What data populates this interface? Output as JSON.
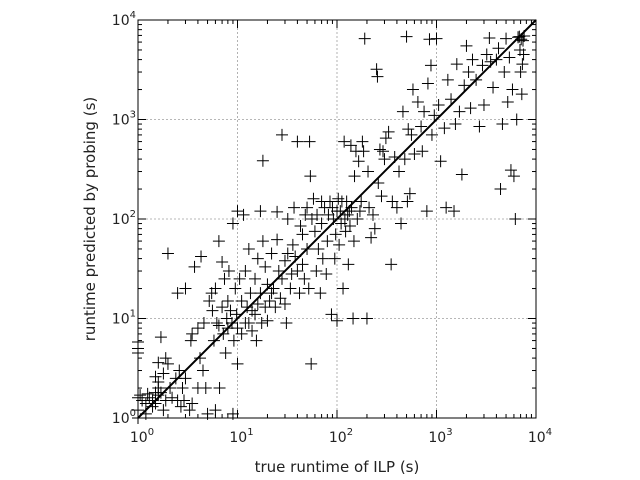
{
  "chart_data": {
    "type": "scatter",
    "scale": "log-log",
    "marker": "plus",
    "xlabel": "true runtime of ILP (s)",
    "ylabel": "runtime predicted by probing (s)",
    "xlim": [
      1,
      10000
    ],
    "ylim": [
      1,
      10000
    ],
    "x_ticks": [
      {
        "base": "10",
        "exp": "0"
      },
      {
        "base": "10",
        "exp": "1"
      },
      {
        "base": "10",
        "exp": "2"
      },
      {
        "base": "10",
        "exp": "3"
      },
      {
        "base": "10",
        "exp": "4"
      }
    ],
    "y_ticks": [
      {
        "base": "10",
        "exp": "0"
      },
      {
        "base": "10",
        "exp": "1"
      },
      {
        "base": "10",
        "exp": "2"
      },
      {
        "base": "10",
        "exp": "3"
      },
      {
        "base": "10",
        "exp": "4"
      }
    ],
    "grid": true,
    "reference_line": {
      "x": [
        1,
        10000
      ],
      "y": [
        1,
        10000
      ]
    },
    "points": [
      [
        1.0,
        1.0
      ],
      [
        1.0,
        1.2
      ],
      [
        1.1,
        1.5
      ],
      [
        1.0,
        1.6
      ],
      [
        1.05,
        1.7
      ],
      [
        1.2,
        1.4
      ],
      [
        1.3,
        1.6
      ],
      [
        1.4,
        1.5
      ],
      [
        1.5,
        1.8
      ],
      [
        1.6,
        1.7
      ],
      [
        1.0,
        4.5
      ],
      [
        1.0,
        5.0
      ],
      [
        1.0,
        5.8
      ],
      [
        1.2,
        1.1
      ],
      [
        1.4,
        1.3
      ],
      [
        1.6,
        2.0
      ],
      [
        1.7,
        1.8
      ],
      [
        1.5,
        1.4
      ],
      [
        1.8,
        1.2
      ],
      [
        1.25,
        1.75
      ],
      [
        1.5,
        2.6
      ],
      [
        1.6,
        2.3
      ],
      [
        1.6,
        3.6
      ],
      [
        1.7,
        6.5
      ],
      [
        1.9,
        4.0
      ],
      [
        1.8,
        2.8
      ],
      [
        1.9,
        1.5
      ],
      [
        2.0,
        3.5
      ],
      [
        2.1,
        2.0
      ],
      [
        2.2,
        1.6
      ],
      [
        2.0,
        45
      ],
      [
        2.4,
        2.5
      ],
      [
        2.5,
        1.5
      ],
      [
        2.6,
        3.0
      ],
      [
        2.7,
        1.3
      ],
      [
        2.9,
        1.5
      ],
      [
        2.8,
        2.0
      ],
      [
        3.0,
        2.5
      ],
      [
        3.3,
        1.2
      ],
      [
        3.5,
        1.4
      ],
      [
        2.5,
        18
      ],
      [
        3.0,
        20
      ],
      [
        3.5,
        7.0
      ],
      [
        3.4,
        6.0
      ],
      [
        4.0,
        2.0
      ],
      [
        4.0,
        8.0
      ],
      [
        4.2,
        4.0
      ],
      [
        4.5,
        3.0
      ],
      [
        4.6,
        9.0
      ],
      [
        4.8,
        2.0
      ],
      [
        4.3,
        42
      ],
      [
        3.7,
        33
      ],
      [
        5.0,
        1.1
      ],
      [
        5.2,
        15
      ],
      [
        5.5,
        18
      ],
      [
        5.6,
        12
      ],
      [
        5.8,
        6.0
      ],
      [
        6.0,
        20
      ],
      [
        6.2,
        9.0
      ],
      [
        6.5,
        8.5
      ],
      [
        6.0,
        1.2
      ],
      [
        6.6,
        2.0
      ],
      [
        7.0,
        13
      ],
      [
        7.2,
        7.0
      ],
      [
        6.5,
        60
      ],
      [
        7.0,
        37
      ],
      [
        7.4,
        25
      ],
      [
        7.6,
        4.5
      ],
      [
        7.8,
        10
      ],
      [
        8.0,
        15
      ],
      [
        8.0,
        8.0
      ],
      [
        8.2,
        30
      ],
      [
        8.5,
        12
      ],
      [
        8.8,
        9.0
      ],
      [
        9.0,
        1.1
      ],
      [
        9.0,
        90
      ],
      [
        9.2,
        6.0
      ],
      [
        9.5,
        20
      ],
      [
        9.8,
        11
      ],
      [
        10,
        120
      ],
      [
        10,
        8.0
      ],
      [
        10.5,
        25
      ],
      [
        10,
        3.5
      ],
      [
        11,
        7.0
      ],
      [
        11,
        15
      ],
      [
        11.5,
        110
      ],
      [
        12,
        9.0
      ],
      [
        12,
        30
      ],
      [
        12.5,
        13
      ],
      [
        13,
        50
      ],
      [
        13,
        9.0
      ],
      [
        13.5,
        18
      ],
      [
        14,
        7.5
      ],
      [
        14,
        12
      ],
      [
        15,
        25
      ],
      [
        15,
        11
      ],
      [
        15.5,
        6.0
      ],
      [
        16,
        14
      ],
      [
        16,
        40
      ],
      [
        17,
        120
      ],
      [
        17,
        18
      ],
      [
        17.5,
        9.0
      ],
      [
        18,
        385
      ],
      [
        18,
        60
      ],
      [
        19,
        13
      ],
      [
        19,
        33
      ],
      [
        20,
        22
      ],
      [
        20,
        9.5
      ],
      [
        21,
        15
      ],
      [
        22,
        18
      ],
      [
        22,
        45
      ],
      [
        23,
        20
      ],
      [
        24,
        13
      ],
      [
        25,
        118
      ],
      [
        25,
        62
      ],
      [
        26,
        30
      ],
      [
        27,
        16
      ],
      [
        28,
        700
      ],
      [
        28,
        25
      ],
      [
        30,
        38
      ],
      [
        30,
        14
      ],
      [
        31,
        9.0
      ],
      [
        32,
        100
      ],
      [
        32,
        45
      ],
      [
        34,
        20
      ],
      [
        35,
        28
      ],
      [
        36,
        55
      ],
      [
        37,
        130
      ],
      [
        38,
        42
      ],
      [
        40,
        600
      ],
      [
        40,
        30
      ],
      [
        42,
        18
      ],
      [
        43,
        85
      ],
      [
        45,
        70
      ],
      [
        45,
        35
      ],
      [
        47,
        25
      ],
      [
        48,
        110
      ],
      [
        50,
        130
      ],
      [
        50,
        50
      ],
      [
        52,
        20
      ],
      [
        53,
        600
      ],
      [
        54,
        270
      ],
      [
        55,
        3.5
      ],
      [
        56,
        100
      ],
      [
        58,
        160
      ],
      [
        60,
        75
      ],
      [
        62,
        30
      ],
      [
        63,
        110
      ],
      [
        65,
        50
      ],
      [
        68,
        18
      ],
      [
        70,
        90
      ],
      [
        70,
        150
      ],
      [
        72,
        40
      ],
      [
        75,
        130
      ],
      [
        78,
        28
      ],
      [
        80,
        60
      ],
      [
        82,
        110
      ],
      [
        85,
        150
      ],
      [
        88,
        11
      ],
      [
        90,
        130
      ],
      [
        92,
        100
      ],
      [
        95,
        40
      ],
      [
        97,
        70
      ],
      [
        100,
        120
      ],
      [
        100,
        9.5
      ],
      [
        103,
        160
      ],
      [
        105,
        55
      ],
      [
        108,
        120
      ],
      [
        110,
        90
      ],
      [
        112,
        150
      ],
      [
        115,
        20
      ],
      [
        118,
        600
      ],
      [
        120,
        100
      ],
      [
        122,
        75
      ],
      [
        125,
        150
      ],
      [
        128,
        110
      ],
      [
        130,
        35
      ],
      [
        133,
        120
      ],
      [
        135,
        85
      ],
      [
        138,
        550
      ],
      [
        140,
        130
      ],
      [
        145,
        10
      ],
      [
        148,
        60
      ],
      [
        150,
        270
      ],
      [
        155,
        480
      ],
      [
        160,
        100
      ],
      [
        165,
        380
      ],
      [
        170,
        120
      ],
      [
        175,
        150
      ],
      [
        180,
        600
      ],
      [
        185,
        480
      ],
      [
        190,
        6500
      ],
      [
        200,
        10
      ],
      [
        205,
        300
      ],
      [
        210,
        130
      ],
      [
        220,
        65
      ],
      [
        230,
        110
      ],
      [
        240,
        80
      ],
      [
        250,
        3200
      ],
      [
        255,
        2700
      ],
      [
        260,
        230
      ],
      [
        270,
        500
      ],
      [
        280,
        170
      ],
      [
        290,
        480
      ],
      [
        300,
        400
      ],
      [
        310,
        650
      ],
      [
        330,
        750
      ],
      [
        350,
        35
      ],
      [
        360,
        150
      ],
      [
        380,
        420
      ],
      [
        400,
        130
      ],
      [
        420,
        300
      ],
      [
        440,
        90
      ],
      [
        460,
        1200
      ],
      [
        480,
        400
      ],
      [
        500,
        6800
      ],
      [
        510,
        150
      ],
      [
        520,
        800
      ],
      [
        540,
        180
      ],
      [
        560,
        700
      ],
      [
        580,
        2000
      ],
      [
        600,
        450
      ],
      [
        650,
        1500
      ],
      [
        700,
        850
      ],
      [
        720,
        480
      ],
      [
        750,
        1200
      ],
      [
        800,
        120
      ],
      [
        820,
        2300
      ],
      [
        850,
        6400
      ],
      [
        880,
        3500
      ],
      [
        900,
        700
      ],
      [
        950,
        1100
      ],
      [
        1000,
        6500
      ],
      [
        1050,
        1400
      ],
      [
        1100,
        380
      ],
      [
        1200,
        820
      ],
      [
        1250,
        130
      ],
      [
        1300,
        2500
      ],
      [
        1400,
        1600
      ],
      [
        1500,
        120
      ],
      [
        1550,
        900
      ],
      [
        1600,
        3600
      ],
      [
        1700,
        1200
      ],
      [
        1800,
        280
      ],
      [
        1900,
        2200
      ],
      [
        2000,
        5500
      ],
      [
        2100,
        3000
      ],
      [
        2200,
        1300
      ],
      [
        2300,
        4000
      ],
      [
        2500,
        2500
      ],
      [
        2700,
        850
      ],
      [
        2900,
        3500
      ],
      [
        3000,
        1400
      ],
      [
        3200,
        4500
      ],
      [
        3400,
        6600
      ],
      [
        3500,
        3800
      ],
      [
        3700,
        2100
      ],
      [
        4000,
        4000
      ],
      [
        4200,
        5200
      ],
      [
        4400,
        200
      ],
      [
        4600,
        900
      ],
      [
        4800,
        3000
      ],
      [
        5000,
        6500
      ],
      [
        5200,
        1500
      ],
      [
        5400,
        4200
      ],
      [
        5600,
        310
      ],
      [
        5800,
        2000
      ],
      [
        6000,
        270
      ],
      [
        6200,
        100
      ],
      [
        6400,
        1000
      ],
      [
        6600,
        6700
      ],
      [
        6800,
        6800
      ],
      [
        6900,
        5000
      ],
      [
        7000,
        3000
      ],
      [
        7100,
        6400
      ],
      [
        7200,
        1800
      ],
      [
        7300,
        3600
      ],
      [
        7400,
        6200
      ],
      [
        7500,
        4500
      ],
      [
        7600,
        6900
      ]
    ]
  }
}
